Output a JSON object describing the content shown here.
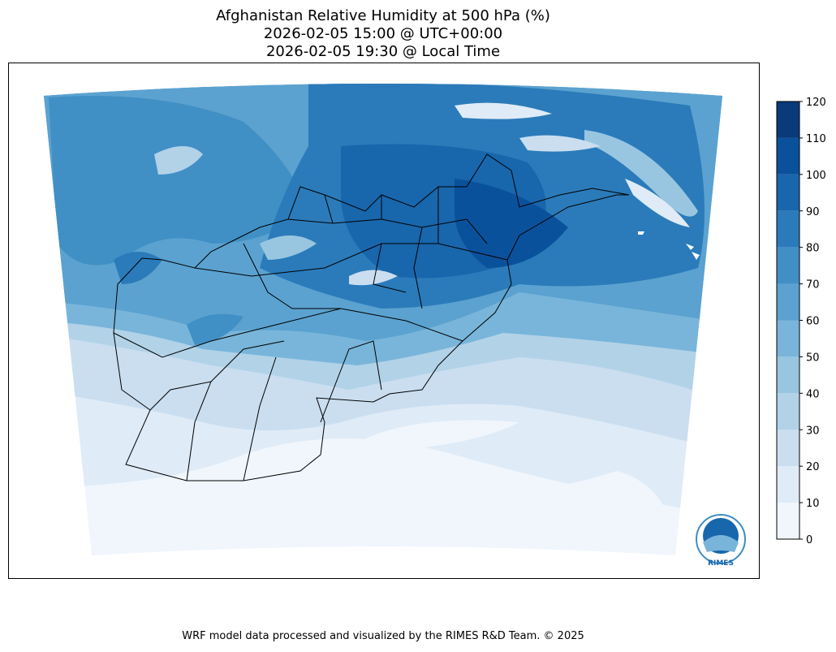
{
  "title": [
    "Afghanistan Relative Humidity at 500 hPa (%)",
    "2026-02-05 15:00 @ UTC+00:00",
    "2026-02-05 19:30 @ Local Time"
  ],
  "colorbar": {
    "ticks": [
      0,
      10,
      20,
      30,
      40,
      50,
      60,
      70,
      80,
      90,
      100,
      110,
      120
    ],
    "colors": [
      "#f0f6fc",
      "#dfebf7",
      "#cadef0",
      "#b2d2e8",
      "#98c6e0",
      "#79b5da",
      "#5ba2d0",
      "#4190c5",
      "#2b7bba",
      "#1866ac",
      "#0a519c",
      "#093a7a"
    ]
  },
  "logo": "RIMES",
  "footer": "WRF model data processed and visualized by the RIMES R&D Team. © 2025"
}
